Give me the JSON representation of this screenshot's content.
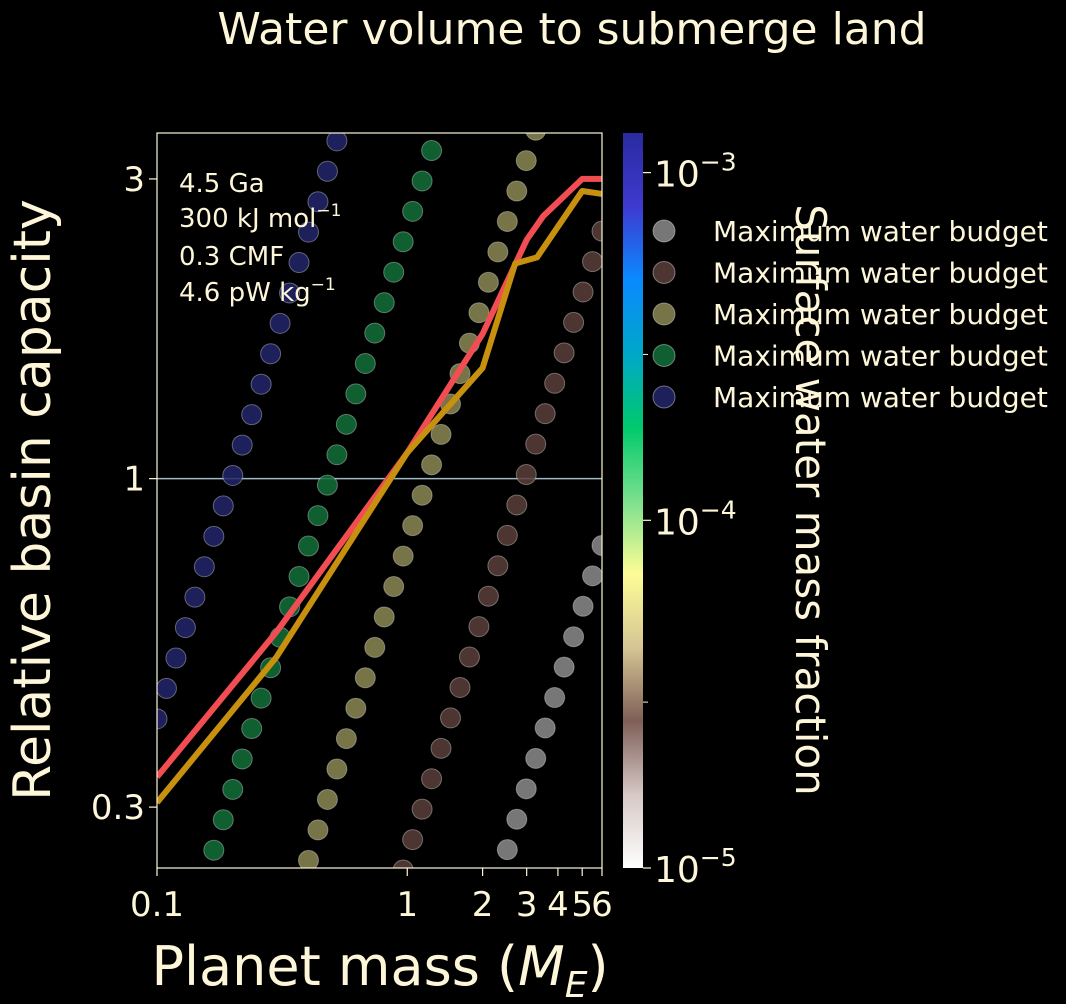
{
  "chart_data": {
    "type": "scatter",
    "title": "Water volume to submerge land",
    "xlabel": "Planet mass (",
    "xlabel_math": "M",
    "xlabel_sub": "E",
    "xlabel_close": ")",
    "ylabel": "Relative basin capacity",
    "xscale": "log",
    "yscale": "log",
    "xlim": [
      0.1,
      6
    ],
    "ylim": [
      0.24,
      3.55
    ],
    "x_ticks": [
      {
        "v": 0.1,
        "label": "0.1"
      },
      {
        "v": 1,
        "label": "1"
      },
      {
        "v": 2,
        "label": "2"
      },
      {
        "v": 3,
        "label": "3"
      },
      {
        "v": 4,
        "label": "4"
      },
      {
        "v": 5,
        "label": "5"
      },
      {
        "v": 6,
        "label": "6"
      }
    ],
    "y_ticks": [
      {
        "v": 0.3,
        "label": "0.3"
      },
      {
        "v": 1,
        "label": "1"
      },
      {
        "v": 3,
        "label": "3"
      }
    ],
    "reference_line": {
      "y": 1,
      "color": "#9fb8c0"
    },
    "annotation_lines": [
      {
        "text": "4.5 Ga",
        "sup": ""
      },
      {
        "text": "300 kJ mol",
        "sup": "−1"
      },
      {
        "text": "0.3 CMF",
        "sup": ""
      },
      {
        "text": "4.6 pW kg",
        "sup": "−1"
      }
    ],
    "series_points": {
      "x_start": 0.1,
      "x_end": 6,
      "count": 48
    },
    "series": [
      {
        "name": "Maximum water budget",
        "water_mass_fraction": 1e-05,
        "color": "#8c8c8c",
        "slope": 1.28,
        "y_at_1": 0.079
      },
      {
        "name": "Maximum water budget",
        "water_mass_fraction": 3e-05,
        "color": "#5a3f3b",
        "slope": 1.28,
        "y_at_1": 0.25
      },
      {
        "name": "Maximum water budget",
        "water_mass_fraction": 0.0001,
        "color": "#8c8855",
        "slope": 1.28,
        "y_at_1": 0.79
      },
      {
        "name": "Maximum water budget",
        "water_mass_fraction": 0.0003,
        "color": "#12703a",
        "slope": 1.28,
        "y_at_1": 2.5
      },
      {
        "name": "Maximum water budget",
        "water_mass_fraction": 0.001,
        "color": "#22266a",
        "slope": 1.28,
        "y_at_1": 7.9
      }
    ],
    "lines": [
      {
        "color": "#f24d53",
        "x": [
          0.1,
          0.3,
          1,
          2,
          3,
          3.5,
          5,
          6
        ],
        "y": [
          0.335,
          0.57,
          1.1,
          1.7,
          2.4,
          2.62,
          3.0,
          3.0
        ]
      },
      {
        "color": "#c8900f",
        "x": [
          0.1,
          0.3,
          1,
          2,
          2.7,
          3.3,
          5,
          6
        ],
        "y": [
          0.305,
          0.52,
          1.1,
          1.5,
          2.2,
          2.25,
          2.87,
          2.84
        ]
      }
    ],
    "legend": {
      "placement": "upper right, outside axes",
      "labels": [
        "Maximum water budget",
        "Maximum water budget",
        "Maximum water budget",
        "Maximum water budget",
        "Maximum water budget"
      ]
    },
    "colorbar": {
      "label": "Surface water mass fraction",
      "scale": "log",
      "range": [
        1e-05,
        0.0013
      ],
      "ticks": [
        {
          "v": 1e-05,
          "base": "10",
          "exp": "−5"
        },
        {
          "v": 0.0001,
          "base": "10",
          "exp": "−4"
        },
        {
          "v": 0.001,
          "base": "10",
          "exp": "−3"
        }
      ],
      "minor_ticks": [
        3e-05,
        0.0003
      ],
      "colormap": [
        "#ffffff",
        "#d6c8c4",
        "#7e5f58",
        "#d6c594",
        "#fdfd96",
        "#7be08d",
        "#00c96c",
        "#00a7c9",
        "#0a8aff",
        "#3e3ad0",
        "#2a2aa0"
      ]
    }
  }
}
